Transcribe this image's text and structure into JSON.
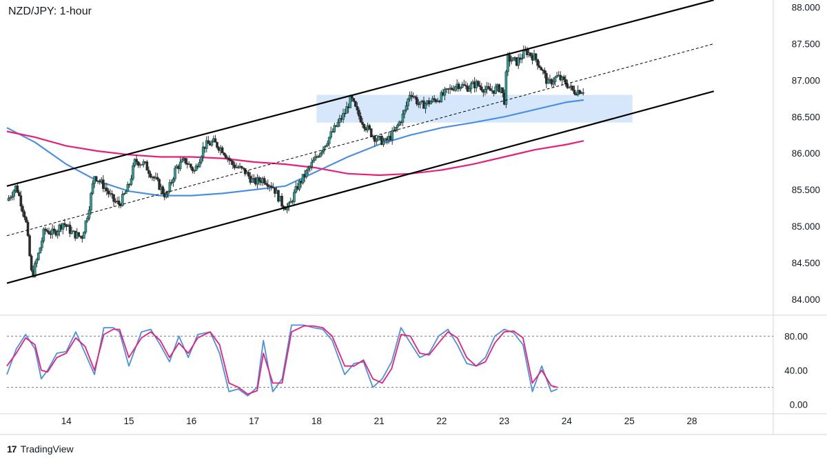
{
  "title": "NZD/JPY: 1-hour",
  "footer": {
    "logo_text": "17",
    "brand": "TradingView"
  },
  "colors": {
    "bull": "#26a69a",
    "bear": "#ef5350",
    "candle_body": "#2b2b2b",
    "sma_fast": "#4a90e2",
    "sma_slow": "#e91e7a",
    "stoch_k": "#4a90e2",
    "stoch_d": "#e91e7a",
    "zone": "#cfe3fa",
    "channel": "#000000",
    "grid": "#d1d4dc",
    "text": "#131722"
  },
  "chart_data": [
    {
      "type": "line",
      "title": "NZD/JPY: 1-hour",
      "y_ticks": [
        "88.000",
        "87.500",
        "87.000",
        "86.500",
        "86.000",
        "85.500",
        "85.000",
        "84.500",
        "84.000"
      ],
      "y_tick_values": [
        88.0,
        87.5,
        87.0,
        86.5,
        86.0,
        85.5,
        85.0,
        84.5,
        84.0
      ],
      "ylim": [
        83.8,
        88.1
      ],
      "x_ticks": [
        "14",
        "15",
        "16",
        "17",
        "18",
        "21",
        "22",
        "23",
        "24",
        "25",
        "28"
      ],
      "x_tick_index": [
        0,
        1,
        2,
        3,
        4,
        5,
        6,
        7,
        8,
        9,
        10
      ],
      "xlim": [
        -0.95,
        11.3
      ],
      "last_bar_index": 8.27,
      "price_path": [
        [
          -0.95,
          85.35
        ],
        [
          -0.8,
          85.55
        ],
        [
          -0.65,
          85.1
        ],
        [
          -0.55,
          84.3
        ],
        [
          -0.45,
          84.6
        ],
        [
          -0.35,
          84.95
        ],
        [
          -0.2,
          84.9
        ],
        [
          -0.05,
          85.05
        ],
        [
          0.1,
          84.9
        ],
        [
          0.25,
          84.85
        ],
        [
          0.35,
          85.2
        ],
        [
          0.45,
          85.7
        ],
        [
          0.6,
          85.55
        ],
        [
          0.75,
          85.35
        ],
        [
          0.85,
          85.3
        ],
        [
          1.0,
          85.55
        ],
        [
          1.1,
          85.9
        ],
        [
          1.25,
          85.85
        ],
        [
          1.45,
          85.6
        ],
        [
          1.6,
          85.4
        ],
        [
          1.75,
          85.8
        ],
        [
          1.9,
          85.9
        ],
        [
          2.05,
          85.75
        ],
        [
          2.2,
          86.1
        ],
        [
          2.35,
          86.15
        ],
        [
          2.5,
          86.05
        ],
        [
          2.65,
          85.85
        ],
        [
          2.85,
          85.75
        ],
        [
          3.0,
          85.6
        ],
        [
          3.15,
          85.65
        ],
        [
          3.3,
          85.55
        ],
        [
          3.45,
          85.3
        ],
        [
          3.55,
          85.25
        ],
        [
          3.7,
          85.55
        ],
        [
          3.85,
          85.75
        ],
        [
          4.0,
          85.95
        ],
        [
          4.15,
          86.15
        ],
        [
          4.3,
          86.35
        ],
        [
          4.45,
          86.55
        ],
        [
          4.55,
          86.75
        ],
        [
          4.65,
          86.55
        ],
        [
          4.8,
          86.35
        ],
        [
          4.95,
          86.2
        ],
        [
          5.1,
          86.15
        ],
        [
          5.25,
          86.3
        ],
        [
          5.4,
          86.55
        ],
        [
          5.5,
          86.85
        ],
        [
          5.65,
          86.65
        ],
        [
          5.8,
          86.7
        ],
        [
          5.95,
          86.75
        ],
        [
          6.1,
          86.85
        ],
        [
          6.25,
          86.95
        ],
        [
          6.4,
          86.9
        ],
        [
          6.55,
          86.95
        ],
        [
          6.75,
          86.85
        ],
        [
          6.95,
          86.9
        ],
        [
          7.0,
          86.7
        ],
        [
          7.05,
          87.3
        ],
        [
          7.2,
          87.25
        ],
        [
          7.35,
          87.4
        ],
        [
          7.5,
          87.3
        ],
        [
          7.6,
          87.15
        ],
        [
          7.7,
          86.95
        ],
        [
          7.85,
          87.05
        ],
        [
          8.0,
          86.95
        ],
        [
          8.1,
          86.85
        ],
        [
          8.27,
          86.87
        ]
      ],
      "channel_lines": [
        {
          "name": "upper",
          "from": [
            -0.95,
            85.55
          ],
          "to": [
            10.35,
            88.1
          ]
        },
        {
          "name": "middle",
          "from": [
            -0.95,
            84.87
          ],
          "to": [
            10.35,
            87.5
          ]
        },
        {
          "name": "lower",
          "from": [
            -0.95,
            84.22
          ],
          "to": [
            10.35,
            86.85
          ]
        }
      ],
      "zone": {
        "x_from": 4.0,
        "x_to": 9.05,
        "y_from": 86.42,
        "y_to": 86.8
      },
      "series": [
        {
          "values_xy": [
            [
              -0.95,
              86.35
            ],
            [
              -0.5,
              86.15
            ],
            [
              0.0,
              85.85
            ],
            [
              0.5,
              85.62
            ],
            [
              1.0,
              85.48
            ],
            [
              1.5,
              85.42
            ],
            [
              2.0,
              85.42
            ],
            [
              2.5,
              85.45
            ],
            [
              3.0,
              85.5
            ],
            [
              3.5,
              85.55
            ],
            [
              4.0,
              85.75
            ],
            [
              4.5,
              85.95
            ],
            [
              5.0,
              86.12
            ],
            [
              5.5,
              86.25
            ],
            [
              6.0,
              86.35
            ],
            [
              6.5,
              86.42
            ],
            [
              7.0,
              86.5
            ],
            [
              7.5,
              86.6
            ],
            [
              8.0,
              86.7
            ],
            [
              8.27,
              86.73
            ]
          ]
        },
        {
          "values_xy": [
            [
              -0.95,
              86.3
            ],
            [
              -0.5,
              86.22
            ],
            [
              0.0,
              86.1
            ],
            [
              0.5,
              86.03
            ],
            [
              1.0,
              85.98
            ],
            [
              1.5,
              85.95
            ],
            [
              2.0,
              85.95
            ],
            [
              2.5,
              85.93
            ],
            [
              3.0,
              85.88
            ],
            [
              3.5,
              85.85
            ],
            [
              4.0,
              85.8
            ],
            [
              4.5,
              85.72
            ],
            [
              5.0,
              85.7
            ],
            [
              5.5,
              85.72
            ],
            [
              6.0,
              85.77
            ],
            [
              6.5,
              85.85
            ],
            [
              7.0,
              85.95
            ],
            [
              7.5,
              86.05
            ],
            [
              8.0,
              86.12
            ],
            [
              8.27,
              86.17
            ]
          ]
        }
      ]
    },
    {
      "type": "line",
      "y_ticks": [
        "80.00",
        "40.00",
        "0.00"
      ],
      "y_tick_values": [
        80,
        40,
        0
      ],
      "reference_lines": [
        80,
        20
      ],
      "ylim": [
        -3,
        103
      ],
      "series": [
        {
          "values_xy": [
            [
              -0.95,
              35
            ],
            [
              -0.8,
              65
            ],
            [
              -0.65,
              82
            ],
            [
              -0.5,
              65
            ],
            [
              -0.4,
              30
            ],
            [
              -0.3,
              40
            ],
            [
              -0.15,
              60
            ],
            [
              0.0,
              62
            ],
            [
              0.15,
              85
            ],
            [
              0.3,
              60
            ],
            [
              0.45,
              35
            ],
            [
              0.6,
              90
            ],
            [
              0.75,
              90
            ],
            [
              0.85,
              85
            ],
            [
              1.0,
              45
            ],
            [
              1.2,
              85
            ],
            [
              1.35,
              88
            ],
            [
              1.5,
              70
            ],
            [
              1.65,
              50
            ],
            [
              1.8,
              80
            ],
            [
              1.95,
              55
            ],
            [
              2.1,
              82
            ],
            [
              2.3,
              85
            ],
            [
              2.45,
              60
            ],
            [
              2.6,
              15
            ],
            [
              2.75,
              18
            ],
            [
              2.9,
              10
            ],
            [
              3.05,
              20
            ],
            [
              3.15,
              75
            ],
            [
              3.3,
              15
            ],
            [
              3.45,
              30
            ],
            [
              3.6,
              93
            ],
            [
              3.8,
              93
            ],
            [
              3.95,
              90
            ],
            [
              4.1,
              88
            ],
            [
              4.25,
              75
            ],
            [
              4.45,
              35
            ],
            [
              4.6,
              48
            ],
            [
              4.75,
              50
            ],
            [
              4.9,
              20
            ],
            [
              5.05,
              30
            ],
            [
              5.2,
              50
            ],
            [
              5.35,
              90
            ],
            [
              5.5,
              72
            ],
            [
              5.65,
              55
            ],
            [
              5.8,
              60
            ],
            [
              5.95,
              80
            ],
            [
              6.1,
              88
            ],
            [
              6.25,
              70
            ],
            [
              6.4,
              48
            ],
            [
              6.55,
              45
            ],
            [
              6.7,
              55
            ],
            [
              6.85,
              80
            ],
            [
              7.0,
              88
            ],
            [
              7.15,
              84
            ],
            [
              7.3,
              70
            ],
            [
              7.45,
              15
            ],
            [
              7.6,
              45
            ],
            [
              7.75,
              15
            ],
            [
              7.85,
              18
            ]
          ]
        },
        {
          "values_xy": [
            [
              -0.95,
              45
            ],
            [
              -0.8,
              60
            ],
            [
              -0.65,
              78
            ],
            [
              -0.5,
              70
            ],
            [
              -0.4,
              40
            ],
            [
              -0.3,
              38
            ],
            [
              -0.15,
              55
            ],
            [
              0.0,
              60
            ],
            [
              0.15,
              78
            ],
            [
              0.3,
              68
            ],
            [
              0.45,
              40
            ],
            [
              0.6,
              82
            ],
            [
              0.75,
              88
            ],
            [
              0.85,
              88
            ],
            [
              1.0,
              55
            ],
            [
              1.2,
              78
            ],
            [
              1.35,
              85
            ],
            [
              1.5,
              75
            ],
            [
              1.65,
              55
            ],
            [
              1.8,
              72
            ],
            [
              1.95,
              60
            ],
            [
              2.1,
              78
            ],
            [
              2.3,
              85
            ],
            [
              2.45,
              70
            ],
            [
              2.6,
              25
            ],
            [
              2.75,
              20
            ],
            [
              2.9,
              12
            ],
            [
              3.05,
              16
            ],
            [
              3.15,
              60
            ],
            [
              3.3,
              25
            ],
            [
              3.45,
              25
            ],
            [
              3.6,
              85
            ],
            [
              3.8,
              92
            ],
            [
              3.95,
              92
            ],
            [
              4.1,
              90
            ],
            [
              4.25,
              80
            ],
            [
              4.45,
              45
            ],
            [
              4.6,
              45
            ],
            [
              4.75,
              52
            ],
            [
              4.9,
              30
            ],
            [
              5.05,
              25
            ],
            [
              5.2,
              42
            ],
            [
              5.35,
              82
            ],
            [
              5.5,
              80
            ],
            [
              5.65,
              60
            ],
            [
              5.8,
              58
            ],
            [
              5.95,
              72
            ],
            [
              6.1,
              85
            ],
            [
              6.25,
              78
            ],
            [
              6.4,
              55
            ],
            [
              6.55,
              45
            ],
            [
              6.7,
              50
            ],
            [
              6.85,
              72
            ],
            [
              7.0,
              85
            ],
            [
              7.15,
              86
            ],
            [
              7.3,
              78
            ],
            [
              7.45,
              25
            ],
            [
              7.6,
              40
            ],
            [
              7.75,
              22
            ],
            [
              7.85,
              20
            ]
          ]
        }
      ]
    }
  ]
}
